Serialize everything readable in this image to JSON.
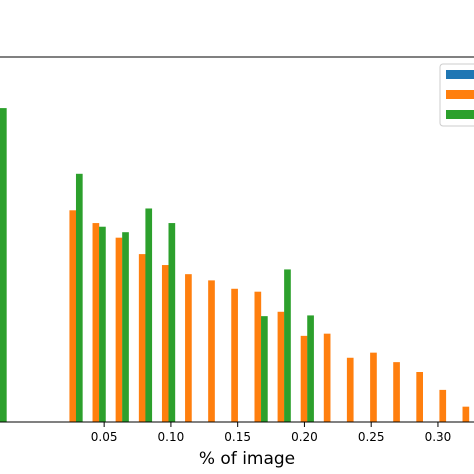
{
  "chart_data": {
    "type": "bar",
    "xlabel": "% of image",
    "ylabel": "",
    "title": "",
    "xlim": [
      -0.028,
      0.327
    ],
    "ylim": [
      0,
      100
    ],
    "grid": false,
    "legend": "top-right",
    "bar_width": 0.005,
    "xticks": [
      {
        "value": 0.05,
        "label": "0.05"
      },
      {
        "value": 0.1,
        "label": "0.10"
      },
      {
        "value": 0.15,
        "label": "0.15"
      },
      {
        "value": 0.2,
        "label": "0.20"
      },
      {
        "value": 0.25,
        "label": "0.25"
      },
      {
        "value": 0.3,
        "label": "0.30"
      }
    ],
    "series": [
      {
        "color": "#1f77b4",
        "points": []
      },
      {
        "color": "#ff7f0e",
        "points": [
          {
            "x": 0.0265,
            "y": 58
          },
          {
            "x": 0.0438,
            "y": 54.5
          },
          {
            "x": 0.0611,
            "y": 50.5
          },
          {
            "x": 0.0785,
            "y": 46
          },
          {
            "x": 0.0958,
            "y": 43
          },
          {
            "x": 0.1131,
            "y": 40.5
          },
          {
            "x": 0.1304,
            "y": 38.8
          },
          {
            "x": 0.1477,
            "y": 36.5
          },
          {
            "x": 0.1651,
            "y": 35.7
          },
          {
            "x": 0.1824,
            "y": 30.2
          },
          {
            "x": 0.1997,
            "y": 23.6
          },
          {
            "x": 0.217,
            "y": 24.2
          },
          {
            "x": 0.2343,
            "y": 17.6
          },
          {
            "x": 0.2517,
            "y": 19
          },
          {
            "x": 0.269,
            "y": 16.4
          },
          {
            "x": 0.2863,
            "y": 13.7
          },
          {
            "x": 0.3036,
            "y": 8.8
          },
          {
            "x": 0.3209,
            "y": 4.2
          }
        ]
      },
      {
        "color": "#2ca02c",
        "points": [
          {
            "x": 0.0314,
            "y": 68
          },
          {
            "x": 0.0487,
            "y": 53.5
          },
          {
            "x": 0.066,
            "y": 52
          },
          {
            "x": 0.0834,
            "y": 58.5
          },
          {
            "x": 0.1007,
            "y": 54.5
          },
          {
            "x": 0.17,
            "y": 29
          },
          {
            "x": 0.1873,
            "y": 41.8
          },
          {
            "x": 0.2046,
            "y": 29.2
          }
        ]
      }
    ],
    "partial_green_bar": {
      "x": -0.0255,
      "y": 86
    }
  }
}
